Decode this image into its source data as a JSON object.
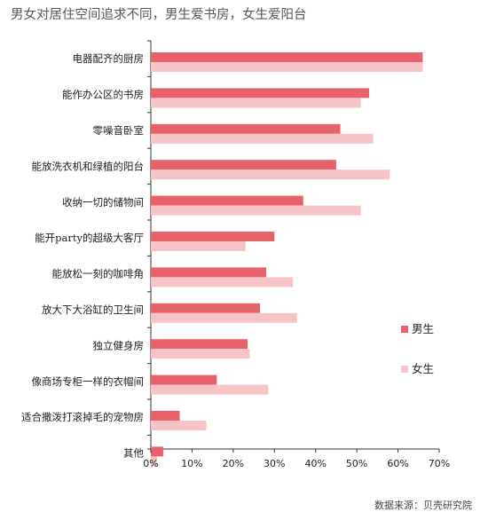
{
  "chart_data": {
    "type": "bar",
    "orientation": "horizontal",
    "title": "男女对居住空间追求不同，男生爱书房，女生爱阳台",
    "categories": [
      "电器配齐的厨房",
      "能作办公区的书房",
      "零噪音卧室",
      "能放洗衣机和绿植的阳台",
      "收纳一切的储物间",
      "能开party的超级大客厅",
      "能放松一刻的咖啡角",
      "放大下大浴缸的卫生间",
      "独立健身房",
      "像商场专柜一样的衣帽间",
      "适合撒泼打滚掉毛的宠物房",
      "其他"
    ],
    "series": [
      {
        "name": "男生",
        "color": "#e8626b",
        "values": [
          66,
          53,
          46,
          45,
          37,
          30,
          28,
          26.5,
          23.5,
          16,
          7,
          3
        ]
      },
      {
        "name": "女生",
        "color": "#f6c3c7",
        "values": [
          66,
          51,
          54,
          58,
          51,
          23,
          34.5,
          35.5,
          24,
          28.5,
          13.5,
          1.5
        ]
      }
    ],
    "xlim": [
      0,
      70
    ],
    "xticks": [
      "0%",
      "10%",
      "20%",
      "30%",
      "40%",
      "50%",
      "60%",
      "70%"
    ],
    "grid": false,
    "legend_position": "right"
  },
  "source": "数据来源：贝壳研究院"
}
